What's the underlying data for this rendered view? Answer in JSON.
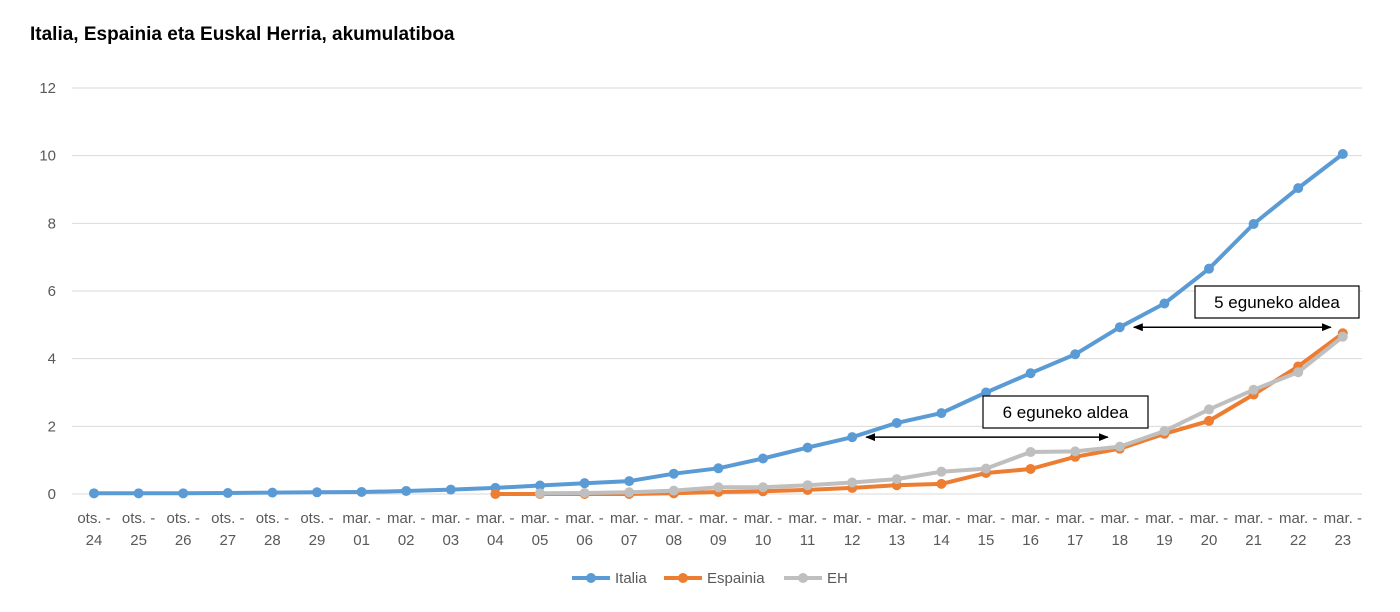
{
  "chart_data": {
    "type": "line",
    "title": "Italia, Espainia eta Euskal Herria, akumulatiboa",
    "categories": [
      "ots. - 24",
      "ots. - 25",
      "ots. - 26",
      "ots. - 27",
      "ots. - 28",
      "ots. - 29",
      "mar. - 01",
      "mar. - 02",
      "mar. - 03",
      "mar. - 04",
      "mar. - 05",
      "mar. - 06",
      "mar. - 07",
      "mar. - 08",
      "mar. - 09",
      "mar. - 10",
      "mar. - 11",
      "mar. - 12",
      "mar. - 13",
      "mar. - 14",
      "mar. - 15",
      "mar. - 16",
      "mar. - 17",
      "mar. - 18",
      "mar. - 19",
      "mar. - 20",
      "mar. - 21",
      "mar. - 22",
      "mar. - 23"
    ],
    "ylim": [
      0,
      12
    ],
    "yticks": [
      0,
      2,
      4,
      6,
      8,
      10,
      12
    ],
    "grid": true,
    "legend_position": "bottom",
    "series": [
      {
        "name": "Italia",
        "color": "#5B9BD5",
        "values": [
          0.02,
          0.02,
          0.02,
          0.03,
          0.04,
          0.05,
          0.06,
          0.09,
          0.13,
          0.18,
          0.25,
          0.32,
          0.38,
          0.6,
          0.76,
          1.05,
          1.37,
          1.68,
          2.1,
          2.39,
          3.0,
          3.57,
          4.13,
          4.93,
          5.63,
          6.66,
          7.98,
          9.04,
          10.05
        ]
      },
      {
        "name": "Espainia",
        "color": "#ED7D31",
        "values": [
          null,
          null,
          null,
          null,
          null,
          null,
          null,
          null,
          null,
          0.0,
          0.0,
          0.0,
          0.0,
          0.02,
          0.06,
          0.08,
          0.12,
          0.18,
          0.26,
          0.3,
          0.62,
          0.74,
          1.1,
          1.34,
          1.78,
          2.16,
          2.94,
          3.77,
          4.75
        ]
      },
      {
        "name": "EH",
        "color": "#BFBFBF",
        "values": [
          null,
          null,
          null,
          null,
          null,
          null,
          null,
          null,
          null,
          null,
          0.02,
          0.03,
          0.05,
          0.1,
          0.2,
          0.2,
          0.26,
          0.34,
          0.44,
          0.66,
          0.75,
          1.24,
          1.26,
          1.4,
          1.86,
          2.5,
          3.08,
          3.6,
          4.65
        ]
      }
    ],
    "annotations": [
      {
        "text": "5 eguneko aldea",
        "from_index": 23,
        "to_index": 28,
        "y": 4.93
      },
      {
        "text": "6 eguneko aldea",
        "from_index": 17,
        "to_index": 23,
        "y": 1.68
      }
    ]
  }
}
